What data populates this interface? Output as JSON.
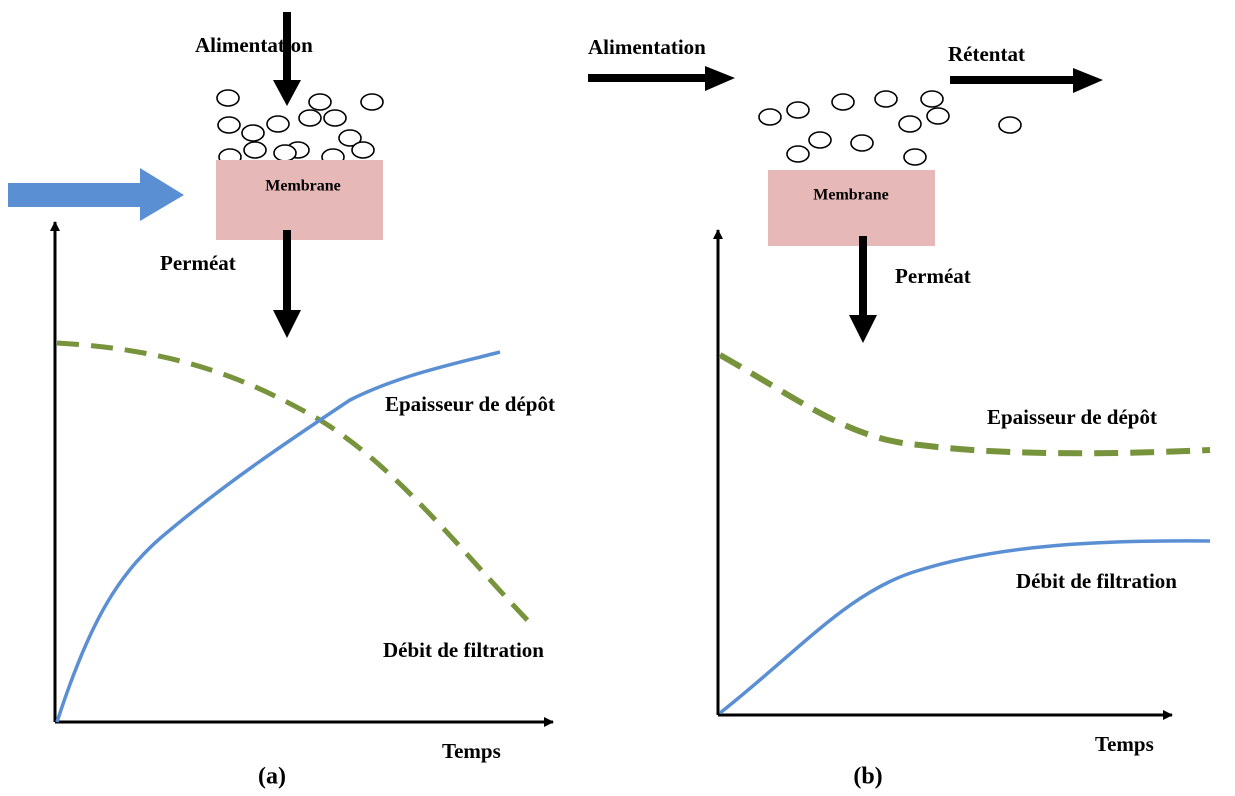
{
  "panel_a": {
    "feed_label": "Alimentation",
    "membrane_label": "Membrane",
    "permeate_label": "Perméat",
    "deposit_label": "Epaisseur de dépôt",
    "flux_label": "Débit de filtration",
    "x_axis_label": "Temps",
    "caption": "(a)"
  },
  "panel_b": {
    "feed_label": "Alimentation",
    "retentate_label": "Rétentat",
    "membrane_label": "Membrane",
    "permeate_label": "Perméat",
    "deposit_label": "Epaisseur de dépôt",
    "flux_label": "Débit de filtration",
    "x_axis_label": "Temps",
    "caption": "(b)"
  }
}
